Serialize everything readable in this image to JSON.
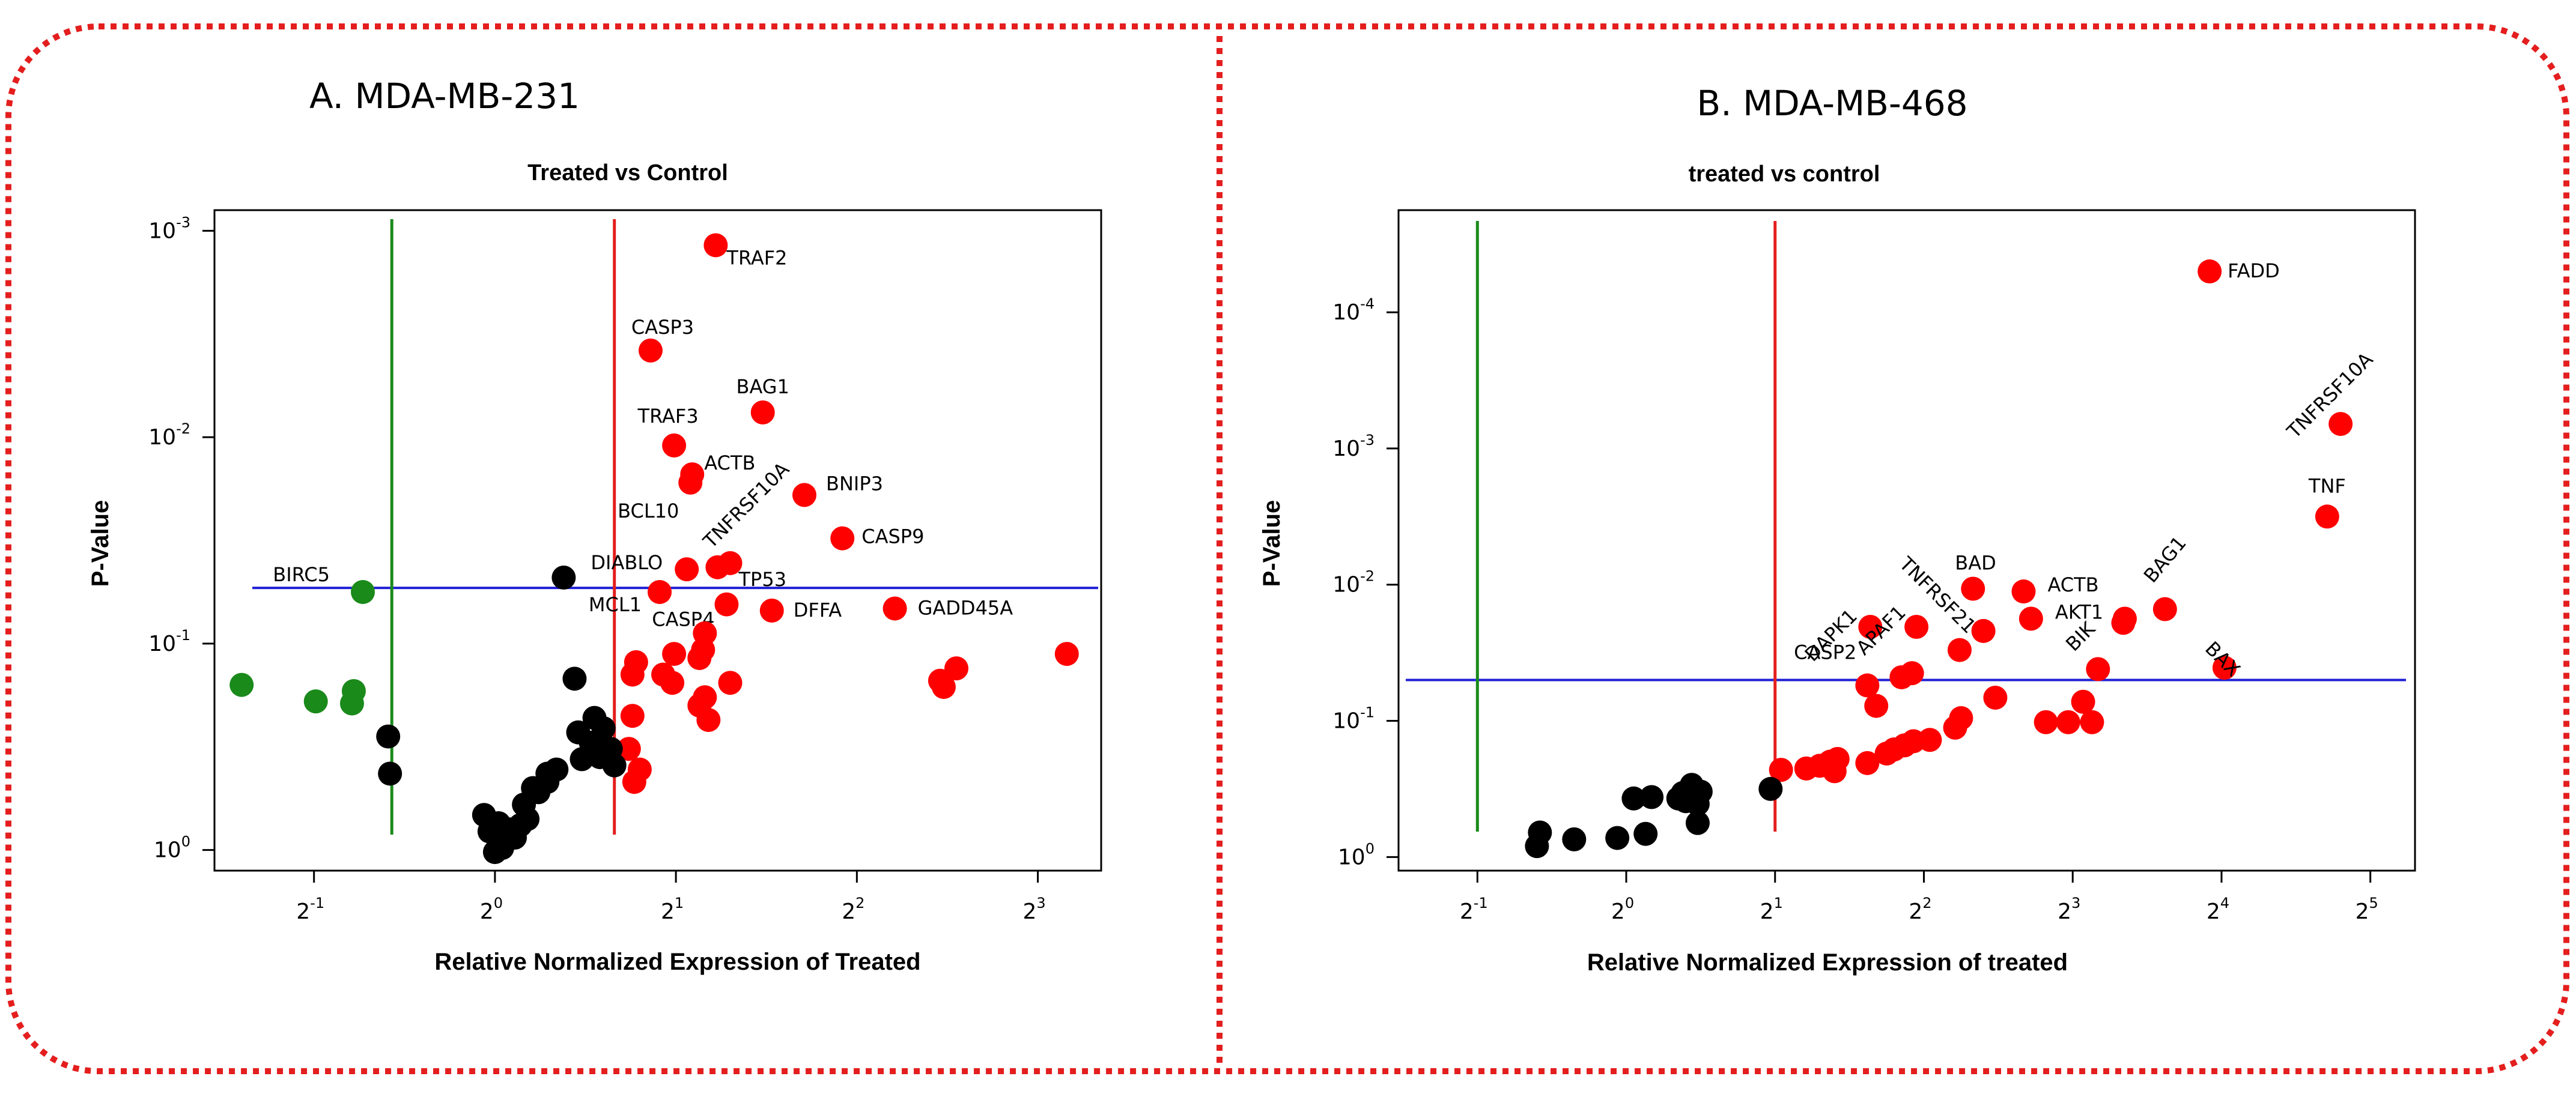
{
  "colors": {
    "border": "#e41e1e",
    "significant_up": "#ff0000",
    "significant_down": "#1a8a1a",
    "not_significant": "#000000",
    "pvalue_threshold_line": "#1f1fd6",
    "fold_up_line": "#e41e1e",
    "fold_down_line": "#1a8a1a"
  },
  "chart_data": [
    {
      "type": "scatter",
      "panel_label": "A. MDA-MB-231",
      "title": "Treated vs Control",
      "xlabel": "Relative Normalized Expression of Treated",
      "ylabel": "P-Value",
      "x_scale": "log2",
      "y_scale": "log10-reversed",
      "xlim_log2": [
        -1.55,
        3.35
      ],
      "ylim_log10": [
        0.1,
        -3.1
      ],
      "x_ticks": [
        {
          "base": "2",
          "exp": "-1",
          "v": -1
        },
        {
          "base": "2",
          "exp": "0",
          "v": 0
        },
        {
          "base": "2",
          "exp": "1",
          "v": 1
        },
        {
          "base": "2",
          "exp": "2",
          "v": 2
        },
        {
          "base": "2",
          "exp": "3",
          "v": 3
        }
      ],
      "y_ticks": [
        {
          "base": "10",
          "exp": "-3",
          "v": -3
        },
        {
          "base": "10",
          "exp": "-2",
          "v": -2
        },
        {
          "base": "10",
          "exp": "-1",
          "v": -1
        },
        {
          "base": "10",
          "exp": "0",
          "v": 0
        }
      ],
      "threshold_lines": {
        "pvalue_log10": -1.27,
        "fold_up_log2": 0.66,
        "fold_down_log2": -0.57
      },
      "points": [
        {
          "x": 1.22,
          "y": -2.93,
          "c": "up",
          "label": "TRAF2"
        },
        {
          "x": 0.86,
          "y": -2.42,
          "c": "up",
          "label": "CASP3"
        },
        {
          "x": 1.48,
          "y": -2.12,
          "c": "up",
          "label": "BAG1"
        },
        {
          "x": 0.99,
          "y": -1.96,
          "c": "up",
          "label": "TRAF3"
        },
        {
          "x": 1.09,
          "y": -1.82,
          "c": "up",
          "label": "ACTB"
        },
        {
          "x": 1.08,
          "y": -1.78,
          "c": "up",
          "label": "BCL10"
        },
        {
          "x": 1.71,
          "y": -1.72,
          "c": "up",
          "label": "BNIP3"
        },
        {
          "x": 1.92,
          "y": -1.51,
          "c": "up",
          "label": "CASP9"
        },
        {
          "x": 1.3,
          "y": -1.39,
          "c": "up",
          "label": "TP53"
        },
        {
          "x": 1.23,
          "y": -1.37,
          "c": "up",
          "label": "TNFRSF10A"
        },
        {
          "x": 1.06,
          "y": -1.36,
          "c": "up",
          "label": "DIABLO"
        },
        {
          "x": 0.91,
          "y": -1.25,
          "c": "up",
          "label": "MCL1"
        },
        {
          "x": 1.28,
          "y": -1.19,
          "c": "up",
          "label": "CASP4"
        },
        {
          "x": 1.53,
          "y": -1.16,
          "c": "up",
          "label": "DFFA"
        },
        {
          "x": 2.21,
          "y": -1.17,
          "c": "up",
          "label": "GADD45A"
        },
        {
          "x": 1.16,
          "y": -1.05,
          "c": "up"
        },
        {
          "x": 1.15,
          "y": -0.97,
          "c": "up"
        },
        {
          "x": 1.13,
          "y": -0.93,
          "c": "up"
        },
        {
          "x": 0.99,
          "y": -0.95,
          "c": "up"
        },
        {
          "x": 0.78,
          "y": -0.91,
          "c": "up"
        },
        {
          "x": 0.76,
          "y": -0.85,
          "c": "up"
        },
        {
          "x": 0.93,
          "y": -0.85,
          "c": "up"
        },
        {
          "x": 0.98,
          "y": -0.81,
          "c": "up"
        },
        {
          "x": 3.16,
          "y": -0.95,
          "c": "up"
        },
        {
          "x": 2.55,
          "y": -0.88,
          "c": "up"
        },
        {
          "x": 2.46,
          "y": -0.82,
          "c": "up"
        },
        {
          "x": 2.48,
          "y": -0.79,
          "c": "up"
        },
        {
          "x": 1.3,
          "y": -0.81,
          "c": "up"
        },
        {
          "x": 1.16,
          "y": -0.74,
          "c": "up"
        },
        {
          "x": 0.76,
          "y": -0.65,
          "c": "up"
        },
        {
          "x": 1.13,
          "y": -0.7,
          "c": "up"
        },
        {
          "x": 1.18,
          "y": -0.63,
          "c": "up"
        },
        {
          "x": 0.74,
          "y": -0.49,
          "c": "up"
        },
        {
          "x": 0.8,
          "y": -0.39,
          "c": "up"
        },
        {
          "x": 0.77,
          "y": -0.33,
          "c": "up"
        },
        {
          "x": -1.4,
          "y": -0.8,
          "c": "down"
        },
        {
          "x": -0.73,
          "y": -1.25,
          "c": "down",
          "label": "BIRC5"
        },
        {
          "x": -0.99,
          "y": -0.72,
          "c": "down"
        },
        {
          "x": -0.79,
          "y": -0.71,
          "c": "down"
        },
        {
          "x": -0.78,
          "y": -0.77,
          "c": "down"
        },
        {
          "x": 0.38,
          "y": -1.32,
          "c": "ns"
        },
        {
          "x": 0.6,
          "y": -0.59,
          "c": "ns"
        },
        {
          "x": 0.55,
          "y": -0.64,
          "c": "ns"
        },
        {
          "x": 0.46,
          "y": -0.57,
          "c": "ns"
        },
        {
          "x": 0.53,
          "y": -0.52,
          "c": "ns"
        },
        {
          "x": 0.64,
          "y": -0.49,
          "c": "ns"
        },
        {
          "x": 0.48,
          "y": -0.44,
          "c": "ns"
        },
        {
          "x": 0.44,
          "y": -0.83,
          "c": "ns"
        },
        {
          "x": 0.58,
          "y": -0.45,
          "c": "ns"
        },
        {
          "x": 0.66,
          "y": -0.41,
          "c": "ns"
        },
        {
          "x": 0.34,
          "y": -0.39,
          "c": "ns"
        },
        {
          "x": 0.29,
          "y": -0.37,
          "c": "ns"
        },
        {
          "x": 0.29,
          "y": -0.33,
          "c": "ns"
        },
        {
          "x": 0.21,
          "y": -0.3,
          "c": "ns"
        },
        {
          "x": 0.24,
          "y": -0.28,
          "c": "ns"
        },
        {
          "x": -0.59,
          "y": -0.55,
          "c": "ns"
        },
        {
          "x": -0.58,
          "y": -0.37,
          "c": "ns"
        },
        {
          "x": -0.06,
          "y": -0.17,
          "c": "ns"
        },
        {
          "x": 0.02,
          "y": -0.13,
          "c": "ns"
        },
        {
          "x": 0.08,
          "y": -0.1,
          "c": "ns"
        },
        {
          "x": 0.14,
          "y": -0.12,
          "c": "ns"
        },
        {
          "x": 0.18,
          "y": -0.15,
          "c": "ns"
        },
        {
          "x": 0.16,
          "y": -0.22,
          "c": "ns"
        },
        {
          "x": -0.03,
          "y": -0.09,
          "c": "ns"
        },
        {
          "x": 0.04,
          "y": -0.05,
          "c": "ns"
        },
        {
          "x": 0.11,
          "y": -0.06,
          "c": "ns"
        },
        {
          "x": 0.0,
          "y": 0.01,
          "c": "ns"
        },
        {
          "x": 0.04,
          "y": -0.01,
          "c": "ns"
        }
      ]
    },
    {
      "type": "scatter",
      "panel_label": "B. MDA-MB-468",
      "title": "treated vs control",
      "xlabel": "Relative Normalized Expression of treated",
      "ylabel": "P-Value",
      "x_scale": "log2",
      "y_scale": "log10-reversed",
      "xlim_log2": [
        -1.53,
        5.3
      ],
      "ylim_log10": [
        0.1,
        -4.75
      ],
      "x_ticks": [
        {
          "base": "2",
          "exp": "-1",
          "v": -1
        },
        {
          "base": "2",
          "exp": "0",
          "v": 0
        },
        {
          "base": "2",
          "exp": "1",
          "v": 1
        },
        {
          "base": "2",
          "exp": "2",
          "v": 2
        },
        {
          "base": "2",
          "exp": "3",
          "v": 3
        },
        {
          "base": "2",
          "exp": "4",
          "v": 4
        },
        {
          "base": "2",
          "exp": "5",
          "v": 5
        }
      ],
      "y_ticks": [
        {
          "base": "10",
          "exp": "-4",
          "v": -4
        },
        {
          "base": "10",
          "exp": "-3",
          "v": -3
        },
        {
          "base": "10",
          "exp": "-2",
          "v": -2
        },
        {
          "base": "10",
          "exp": "-1",
          "v": -1
        },
        {
          "base": "10",
          "exp": "0",
          "v": 0
        }
      ],
      "threshold_lines": {
        "pvalue_log10": -1.3,
        "fold_up_log2": 1.0,
        "fold_down_log2": -1.0
      },
      "points": [
        {
          "x": 3.92,
          "y": -4.3,
          "c": "up",
          "label": "FADD"
        },
        {
          "x": 4.8,
          "y": -3.18,
          "c": "up",
          "label": "TNFRSF10A"
        },
        {
          "x": 4.71,
          "y": -2.5,
          "c": "up",
          "label": "TNF"
        },
        {
          "x": 2.67,
          "y": -1.95,
          "c": "up",
          "label": "ACTB"
        },
        {
          "x": 2.33,
          "y": -1.97,
          "c": "up",
          "label": "BAD"
        },
        {
          "x": 3.62,
          "y": -1.82,
          "c": "up",
          "label": "BAG1"
        },
        {
          "x": 2.72,
          "y": -1.75,
          "c": "up",
          "label": "AKT1"
        },
        {
          "x": 3.35,
          "y": -1.75,
          "c": "up"
        },
        {
          "x": 3.34,
          "y": -1.72,
          "c": "up"
        },
        {
          "x": 1.64,
          "y": -1.69,
          "c": "up",
          "label": "DAPK1"
        },
        {
          "x": 1.95,
          "y": -1.69,
          "c": "up",
          "label": "APAF1"
        },
        {
          "x": 2.4,
          "y": -1.66,
          "c": "up",
          "label": "TNFRSF21"
        },
        {
          "x": 2.24,
          "y": -1.52,
          "c": "up"
        },
        {
          "x": 3.17,
          "y": -1.38,
          "c": "up",
          "label": "BIK"
        },
        {
          "x": 4.02,
          "y": -1.39,
          "c": "up",
          "label": "BAX"
        },
        {
          "x": 1.92,
          "y": -1.35,
          "c": "up"
        },
        {
          "x": 1.85,
          "y": -1.32,
          "c": "up"
        },
        {
          "x": 1.62,
          "y": -1.26,
          "c": "up",
          "label": "CASP2"
        },
        {
          "x": 1.68,
          "y": -1.11,
          "c": "up"
        },
        {
          "x": 2.48,
          "y": -1.17,
          "c": "up"
        },
        {
          "x": 2.25,
          "y": -1.02,
          "c": "up"
        },
        {
          "x": 2.21,
          "y": -0.95,
          "c": "up"
        },
        {
          "x": 2.82,
          "y": -0.99,
          "c": "up"
        },
        {
          "x": 2.97,
          "y": -0.99,
          "c": "up"
        },
        {
          "x": 3.13,
          "y": -0.99,
          "c": "up"
        },
        {
          "x": 3.07,
          "y": -1.14,
          "c": "up"
        },
        {
          "x": 2.04,
          "y": -0.86,
          "c": "up"
        },
        {
          "x": 1.93,
          "y": -0.85,
          "c": "up"
        },
        {
          "x": 1.87,
          "y": -0.82,
          "c": "up"
        },
        {
          "x": 1.8,
          "y": -0.79,
          "c": "up"
        },
        {
          "x": 1.75,
          "y": -0.76,
          "c": "up"
        },
        {
          "x": 1.62,
          "y": -0.69,
          "c": "up"
        },
        {
          "x": 1.42,
          "y": -0.72,
          "c": "up"
        },
        {
          "x": 1.37,
          "y": -0.7,
          "c": "up"
        },
        {
          "x": 1.3,
          "y": -0.67,
          "c": "up"
        },
        {
          "x": 1.21,
          "y": -0.65,
          "c": "up"
        },
        {
          "x": 1.4,
          "y": -0.63,
          "c": "up"
        },
        {
          "x": 1.04,
          "y": -0.64,
          "c": "up"
        },
        {
          "x": 0.97,
          "y": -0.5,
          "c": "ns"
        },
        {
          "x": 0.44,
          "y": -0.53,
          "c": "ns"
        },
        {
          "x": 0.5,
          "y": -0.48,
          "c": "ns"
        },
        {
          "x": 0.38,
          "y": -0.47,
          "c": "ns"
        },
        {
          "x": 0.35,
          "y": -0.43,
          "c": "ns"
        },
        {
          "x": 0.4,
          "y": -0.41,
          "c": "ns"
        },
        {
          "x": 0.48,
          "y": -0.39,
          "c": "ns"
        },
        {
          "x": 0.17,
          "y": -0.44,
          "c": "ns"
        },
        {
          "x": 0.05,
          "y": -0.43,
          "c": "ns"
        },
        {
          "x": 0.48,
          "y": -0.25,
          "c": "ns"
        },
        {
          "x": 0.13,
          "y": -0.17,
          "c": "ns"
        },
        {
          "x": -0.06,
          "y": -0.14,
          "c": "ns"
        },
        {
          "x": -0.58,
          "y": -0.18,
          "c": "ns"
        },
        {
          "x": -0.35,
          "y": -0.13,
          "c": "ns"
        },
        {
          "x": -0.6,
          "y": -0.08,
          "c": "ns"
        }
      ]
    }
  ]
}
